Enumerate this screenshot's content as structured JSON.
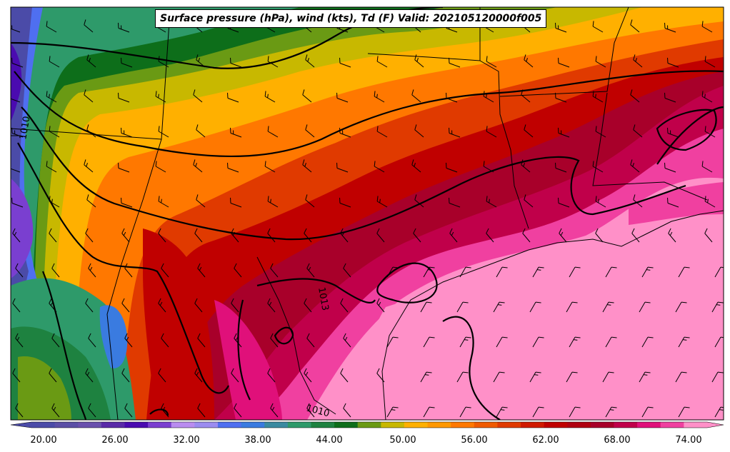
{
  "title": "Surface pressure (hPa), wind (kts), Td (F) Valid: 202105120000f005",
  "colorbar": {
    "tick_labels": [
      "20.00",
      "26.00",
      "32.00",
      "38.00",
      "44.00",
      "50.00",
      "56.00",
      "62.00",
      "68.00",
      "74.00"
    ],
    "colors": [
      "#4b4ba8",
      "#5b4fa6",
      "#6a50ad",
      "#5a2aa8",
      "#4a0bb0",
      "#7a3fd0",
      "#b98cf0",
      "#9b8cf0",
      "#4f6ff0",
      "#3a7be0",
      "#3a8aa0",
      "#2e9a6a",
      "#1e8240",
      "#0d6e1a",
      "#6a9a14",
      "#c8b800",
      "#ffb000",
      "#ff9800",
      "#ff7800",
      "#f05a00",
      "#e03a00",
      "#d01a00",
      "#c00000",
      "#b00010",
      "#a8002a",
      "#c0004a",
      "#e0107a",
      "#f040a0",
      "#ff90c8"
    ]
  },
  "pressure_contour_labels": [
    "1010",
    "1013",
    "1010"
  ]
}
